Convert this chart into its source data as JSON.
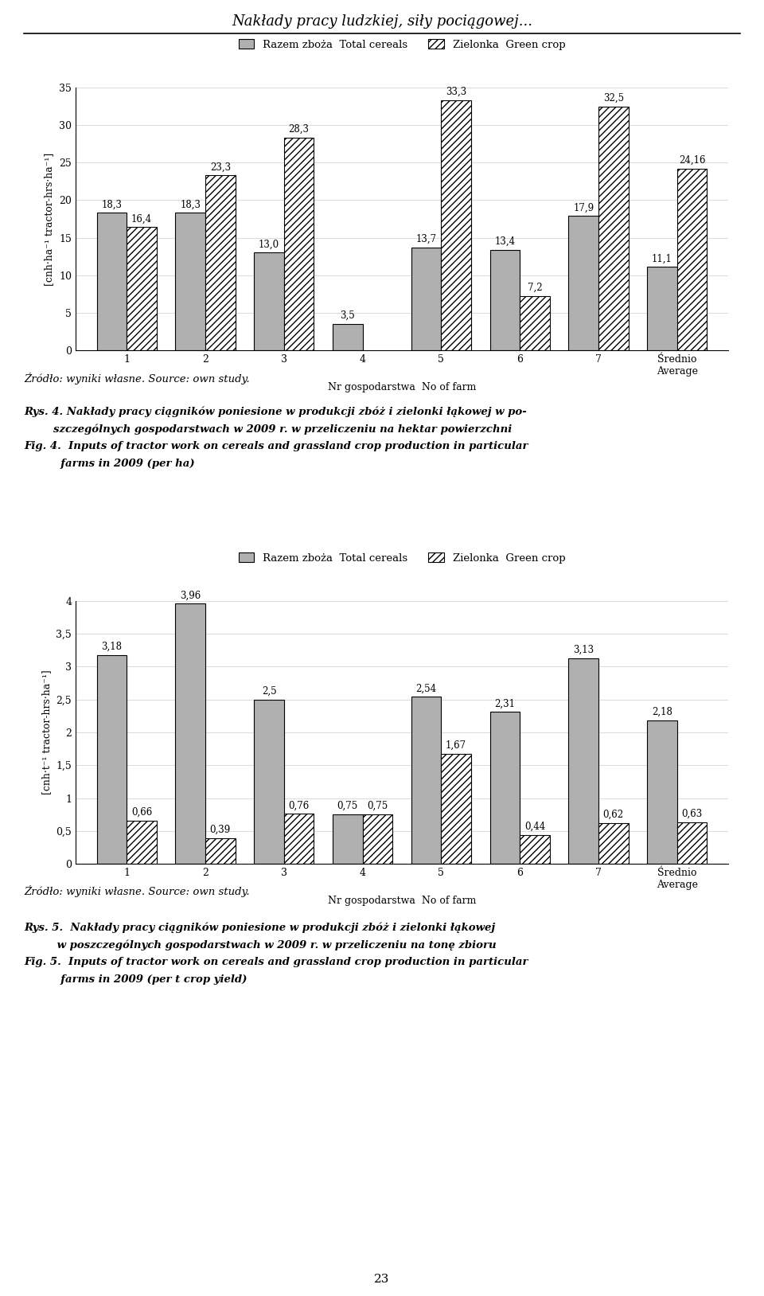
{
  "page_title": "Nakłady pracy ludzkiej, siły pociągowej...",
  "chart1": {
    "categories": [
      "1",
      "2",
      "3",
      "4",
      "5",
      "6",
      "7",
      "Średnio\nAverage"
    ],
    "cereals": [
      18.3,
      18.3,
      13.0,
      3.5,
      13.7,
      13.4,
      17.9,
      11.1
    ],
    "green_crop": [
      16.4,
      23.3,
      28.3,
      null,
      33.3,
      7.2,
      32.5,
      24.16
    ],
    "ylabel": "[cnh·ha⁻¹ tractor-hrs·ha⁻¹]",
    "xlabel": "Nr gospodarstwa  No of farm",
    "ylim": [
      0,
      35
    ],
    "yticks": [
      0,
      5,
      10,
      15,
      20,
      25,
      30,
      35
    ],
    "source": "Źródło: wyniki własne. Source: own study.",
    "cap_bold_pl": "Rys. 4. Nakłady pracy ciągników poniesione w produkcji zbóż i zielonki łąkowej w po-",
    "cap_bold_pl2": "        szczególnych gospodarstwach w 2009 r. w przeliczeniu na hektar powierzchni",
    "cap_bold_en": "Fig. 4.  Inputs of tractor work on cereals and grassland crop production in particular",
    "cap_bold_en2": "          farms in 2009 (per ha)"
  },
  "chart2": {
    "categories": [
      "1",
      "2",
      "3",
      "4",
      "5",
      "6",
      "7",
      "Średnio\nAverage"
    ],
    "cereals": [
      3.18,
      3.96,
      2.5,
      0.75,
      2.54,
      2.31,
      3.13,
      2.18
    ],
    "green_crop": [
      0.66,
      0.39,
      0.76,
      0.75,
      1.67,
      0.44,
      0.62,
      0.63
    ],
    "ylabel": "[cnh·t⁻¹ tractor-hrs·ha⁻¹]",
    "xlabel": "Nr gospodarstwa  No of farm",
    "ylim": [
      0,
      4.0
    ],
    "yticks": [
      0.0,
      0.5,
      1.0,
      1.5,
      2.0,
      2.5,
      3.0,
      3.5,
      4.0
    ],
    "source": "Źródło: wyniki własne. Source: own study.",
    "cap_bold_pl": "Rys. 5.  Nakłady pracy ciągników poniesione w produkcji zbóż i zielonki łąkowej",
    "cap_bold_pl2": "         w poszczególnych gospodarstwach w 2009 r. w przeliczeniu na tonę zbioru",
    "cap_bold_en": "Fig. 5.  Inputs of tractor work on cereals and grassland crop production in particular",
    "cap_bold_en2": "          farms in 2009 (per t crop yield)"
  },
  "legend_cereals": "Razem zboża  Total cereals",
  "legend_green": "Zielonka  Green crop",
  "bar_color_cereals": "#b0b0b0",
  "page_number": "23"
}
